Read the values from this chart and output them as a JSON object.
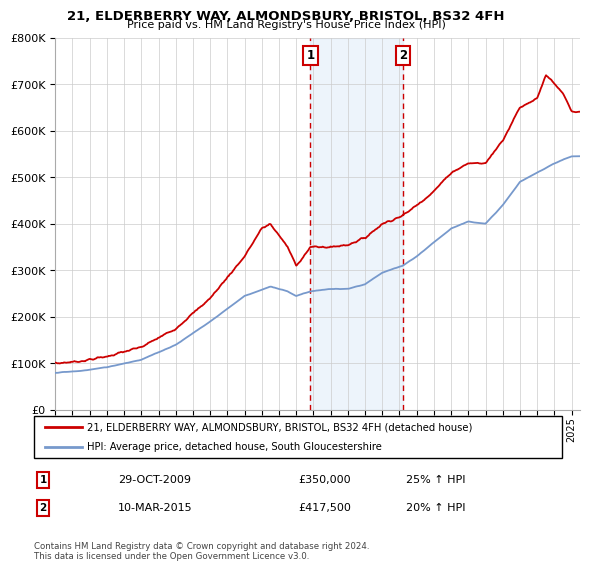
{
  "title": "21, ELDERBERRY WAY, ALMONDSBURY, BRISTOL, BS32 4FH",
  "subtitle": "Price paid vs. HM Land Registry's House Price Index (HPI)",
  "red_label": "21, ELDERBERRY WAY, ALMONDSBURY, BRISTOL, BS32 4FH (detached house)",
  "blue_label": "HPI: Average price, detached house, South Gloucestershire",
  "marker1_x": 2009.83,
  "marker2_x": 2015.19,
  "marker1_price": 350000,
  "marker2_price": 417500,
  "marker1_date": "29-OCT-2009",
  "marker2_date": "10-MAR-2015",
  "marker1_hpi": "25% ↑ HPI",
  "marker2_hpi": "20% ↑ HPI",
  "ylim": [
    0,
    800000
  ],
  "xmin": 1995,
  "xmax": 2025.5,
  "footnote": "Contains HM Land Registry data © Crown copyright and database right 2024.\nThis data is licensed under the Open Government Licence v3.0.",
  "background_color": "#ffffff",
  "shade_color": "#cce0f5",
  "red_color": "#cc0000",
  "blue_color": "#7799cc",
  "grid_color": "#cccccc"
}
